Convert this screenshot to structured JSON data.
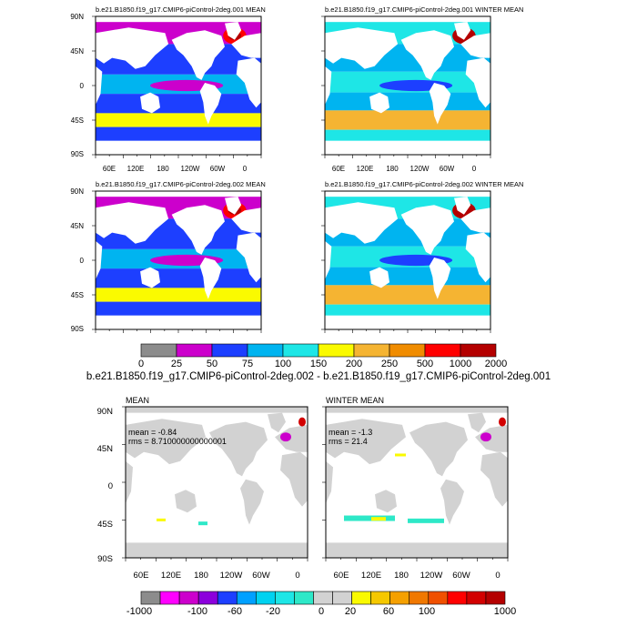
{
  "panels": [
    {
      "title": "b.e21.B1850.f19_g17.CMIP6-piControl-2deg.001 MEAN"
    },
    {
      "title": "b.e21.B1850.f19_g17.CMIP6-piControl-2deg.001 WINTER MEAN"
    },
    {
      "title": "b.e21.B1850.f19_g17.CMIP6-piControl-2deg.002 MEAN"
    },
    {
      "title": "b.e21.B1850.f19_g17.CMIP6-piControl-2deg.002 WINTER MEAN"
    }
  ],
  "lat_labels": [
    "90N",
    "45N",
    "0",
    "45S",
    "90S"
  ],
  "lon_labels": [
    "60E",
    "120E",
    "180",
    "120W",
    "60W",
    "0"
  ],
  "colorbar_top": {
    "labels": [
      "0",
      "25",
      "50",
      "75",
      "100",
      "150",
      "200",
      "250",
      "500",
      "1000",
      "2000"
    ],
    "colors": [
      "#8c8c8c",
      "#cc00cc",
      "#1d3fff",
      "#00b4f0",
      "#1ee6e6",
      "#fafa00",
      "#f5b432",
      "#f08c00",
      "#ff0000",
      "#b40000"
    ]
  },
  "diff": {
    "title": "b.e21.B1850.f19_g17.CMIP6-piControl-2deg.002 - b.e21.B1850.f19_g17.CMIP6-piControl-2deg.001",
    "panels": [
      {
        "label": "MEAN",
        "mean_text": "mean = -0.84",
        "rms_text": "rms = 8.710000000000001"
      },
      {
        "label": "WINTER MEAN",
        "mean_text": "mean = -1.3",
        "rms_text": "rms = 21.4"
      }
    ]
  },
  "colorbar_bottom": {
    "labels": [
      "-1000",
      "-100",
      "-60",
      "-20",
      "0",
      "20",
      "60",
      "100",
      "1000"
    ],
    "colors": [
      "#8c8c8c",
      "#ff00ff",
      "#cc00cc",
      "#8c00dc",
      "#1d3fff",
      "#00a0ff",
      "#00d2f0",
      "#1ee6e6",
      "#2ee8c8",
      "#d2d2d2",
      "#d2d2d2",
      "#fafa00",
      "#f5c800",
      "#f5a000",
      "#f07800",
      "#f05000",
      "#ff0000",
      "#d20000",
      "#b40000"
    ]
  },
  "ocean_color": "#1ee6e6",
  "land_color": "#d2d2d2"
}
